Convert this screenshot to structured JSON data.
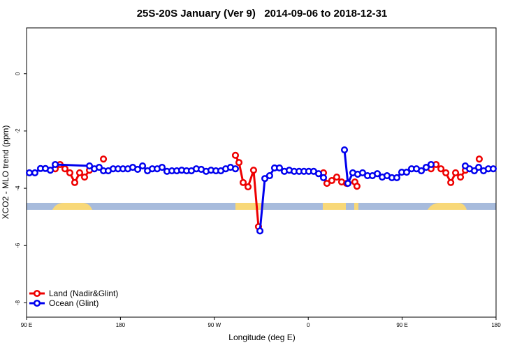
{
  "chart_data": {
    "type": "line",
    "title": "25S-20S January (Ver 9)   2014-09-06 to 2018-12-31",
    "x_label": "Longitude (deg E)",
    "y_label": "XCO2 - MLO trend (ppm)",
    "xlim": [
      90,
      540
    ],
    "ylim": [
      -8.5,
      1.6
    ],
    "xticks": [
      {
        "value": 90,
        "label": "90 E"
      },
      180,
      {
        "value": 270,
        "label": "90 W"
      },
      {
        "value": 360,
        "label": "0"
      },
      {
        "value": 450,
        "label": "90 E"
      },
      {
        "value": 540,
        "label": "180"
      }
    ],
    "yticks": [
      0,
      -2,
      -4,
      -6,
      -8
    ],
    "legend": "bottom-left",
    "series": [
      {
        "name": "Land (Nadir&Glint)",
        "color": "#ee0000",
        "x": [
          117.5,
          122.1,
          126.8,
          131.5,
          136.2,
          140.9,
          145.6,
          150.3,
          null,
          163.7,
          null,
          290.2,
          293.6,
          297.6,
          302.3,
          307.6,
          312.3,
          null,
          374.6,
          377.9,
          382.6,
          387.3,
          392,
          396.7,
          404.7,
          406.7,
          null,
          477.7,
          482.5,
          487.2,
          491.9,
          496.6,
          501.2,
          505.9,
          510.6,
          null,
          523.9
        ],
        "values": [
          -3.32,
          -3.17,
          -3.32,
          -3.46,
          -3.8,
          -3.46,
          -3.61,
          -3.37,
          null,
          -2.98,
          null,
          -2.85,
          -3.1,
          -3.8,
          -3.95,
          -3.37,
          -5.34,
          null,
          -3.46,
          -3.83,
          -3.73,
          -3.61,
          -3.78,
          -3.83,
          -3.78,
          -3.93,
          null,
          -3.32,
          -3.17,
          -3.32,
          -3.46,
          -3.8,
          -3.46,
          -3.61,
          -3.37,
          null,
          -2.98
        ]
      },
      {
        "name": "Ocean (Glint)",
        "color": "#0000ee",
        "x": [
          92.7,
          98,
          103.4,
          108.1,
          112.8,
          117.5,
          150.3,
          155,
          159.6,
          163.7,
          168.3,
          173,
          177.7,
          182.4,
          187.1,
          191.8,
          196.5,
          201.2,
          205.9,
          210.5,
          215.2,
          219.9,
          224.6,
          229.3,
          234,
          238.7,
          243.4,
          248,
          252.7,
          257.4,
          262.1,
          266.8,
          271.5,
          276.2,
          280.9,
          285.5,
          290.2,
          null,
          313.7,
          318.4,
          323,
          327.7,
          332.4,
          337.1,
          341.8,
          346.5,
          351.2,
          355.9,
          360.5,
          365.2,
          369.9,
          374.6,
          null,
          394.7,
          398,
          402.7,
          407.4,
          412.1,
          416.8,
          421.5,
          426.2,
          430.9,
          435.5,
          440.2,
          444.9,
          449.6,
          454.3,
          459,
          463.7,
          468.4,
          473,
          477.7,
          null,
          510.5,
          514.6,
          519.2,
          523.3,
          528,
          532.6,
          537.3
        ],
        "values": [
          -3.46,
          -3.46,
          -3.31,
          -3.31,
          -3.37,
          -3.17,
          -3.22,
          -3.32,
          -3.27,
          -3.39,
          -3.39,
          -3.32,
          -3.32,
          -3.32,
          -3.32,
          -3.27,
          -3.34,
          -3.22,
          -3.39,
          -3.32,
          -3.32,
          -3.27,
          -3.41,
          -3.39,
          -3.39,
          -3.37,
          -3.39,
          -3.39,
          -3.32,
          -3.34,
          -3.41,
          -3.37,
          -3.39,
          -3.39,
          -3.32,
          -3.27,
          -3.32,
          null,
          -5.49,
          -3.66,
          -3.56,
          -3.29,
          -3.29,
          -3.41,
          -3.37,
          -3.41,
          -3.41,
          -3.41,
          -3.41,
          -3.41,
          -3.49,
          -3.63,
          null,
          -2.66,
          -3.83,
          -3.46,
          -3.51,
          -3.46,
          -3.56,
          -3.56,
          -3.49,
          -3.61,
          -3.56,
          -3.63,
          -3.63,
          -3.44,
          -3.44,
          -3.32,
          -3.32,
          -3.39,
          -3.27,
          -3.17,
          null,
          -3.22,
          -3.32,
          -3.39,
          -3.27,
          -3.39,
          -3.32,
          -3.32
        ]
      }
    ]
  }
}
